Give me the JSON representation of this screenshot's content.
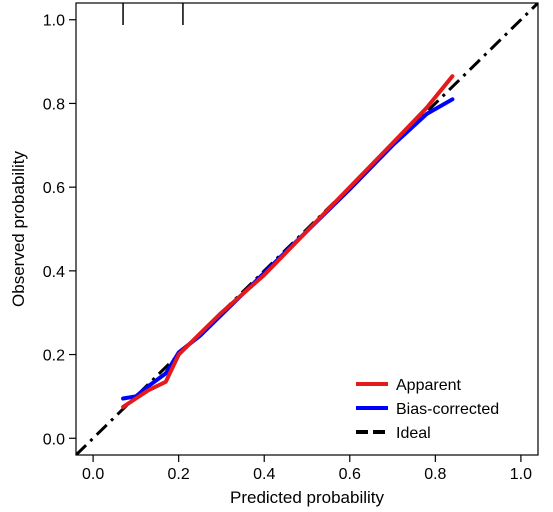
{
  "chart_data": {
    "type": "line",
    "title": "",
    "xlabel": "Predicted probability",
    "ylabel": "Observed probability",
    "xlim": [
      -0.04,
      1.04
    ],
    "ylim": [
      -0.04,
      1.04
    ],
    "x_ticks": [
      {
        "value": 0.0,
        "label": "0.0"
      },
      {
        "value": 0.2,
        "label": "0.2"
      },
      {
        "value": 0.4,
        "label": "0.4"
      },
      {
        "value": 0.6,
        "label": "0.6"
      },
      {
        "value": 0.8,
        "label": "0.8"
      },
      {
        "value": 1.0,
        "label": "1.0"
      }
    ],
    "y_ticks": [
      {
        "value": 0.0,
        "label": "0.0"
      },
      {
        "value": 0.2,
        "label": "0.2"
      },
      {
        "value": 0.4,
        "label": "0.4"
      },
      {
        "value": 0.6,
        "label": "0.6"
      },
      {
        "value": 0.8,
        "label": "0.8"
      },
      {
        "value": 1.0,
        "label": "1.0"
      }
    ],
    "grid": false,
    "legend_position": "bottom-right",
    "rug_x": [
      0.07,
      0.21
    ],
    "series": [
      {
        "name": "Apparent",
        "color": "#e41a1c",
        "dash": "solid",
        "x": [
          0.07,
          0.1,
          0.13,
          0.17,
          0.2,
          0.25,
          0.3,
          0.4,
          0.5,
          0.6,
          0.7,
          0.78,
          0.84
        ],
        "y": [
          0.075,
          0.095,
          0.115,
          0.135,
          0.2,
          0.25,
          0.3,
          0.39,
          0.495,
          0.6,
          0.705,
          0.79,
          0.865
        ]
      },
      {
        "name": "Bias-corrected",
        "color": "#0000ff",
        "dash": "solid",
        "x": [
          0.07,
          0.1,
          0.13,
          0.17,
          0.2,
          0.25,
          0.3,
          0.4,
          0.5,
          0.6,
          0.7,
          0.78,
          0.84
        ],
        "y": [
          0.095,
          0.1,
          0.125,
          0.155,
          0.205,
          0.245,
          0.295,
          0.395,
          0.495,
          0.595,
          0.7,
          0.775,
          0.81
        ]
      },
      {
        "name": "Ideal",
        "color": "#000000",
        "dash": "long-dash",
        "x": [
          -0.04,
          1.04
        ],
        "y": [
          -0.04,
          1.04
        ]
      }
    ]
  }
}
